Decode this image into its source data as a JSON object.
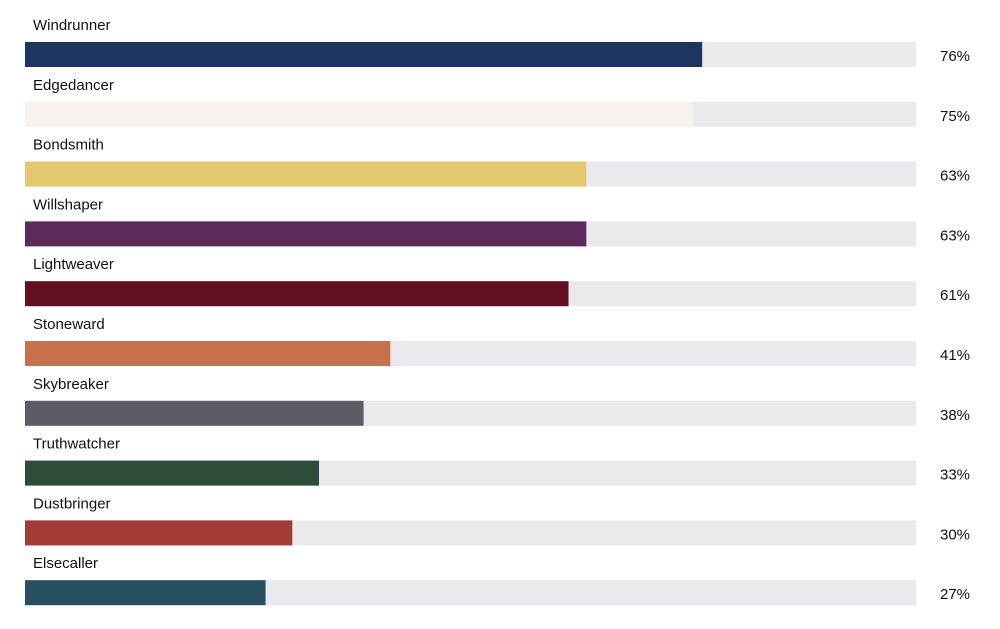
{
  "chart_data": {
    "type": "bar",
    "orientation": "horizontal",
    "categories": [
      "Windrunner",
      "Edgedancer",
      "Bondsmith",
      "Willshaper",
      "Lightweaver",
      "Stoneward",
      "Skybreaker",
      "Truthwatcher",
      "Dustbringer",
      "Elsecaller"
    ],
    "values": [
      76,
      75,
      63,
      63,
      61,
      41,
      38,
      33,
      30,
      27
    ],
    "value_labels": [
      "76%",
      "75%",
      "63%",
      "63%",
      "61%",
      "41%",
      "38%",
      "33%",
      "30%",
      "27%"
    ],
    "colors": [
      "#1e3461",
      "#f8f2ee",
      "#e3c870",
      "#5e2a5c",
      "#620f22",
      "#c8704b",
      "#5e5b67",
      "#2d4d3a",
      "#a23a35",
      "#264f62"
    ],
    "track_color": "#e9e9ee",
    "xlim": [
      0,
      100
    ]
  }
}
